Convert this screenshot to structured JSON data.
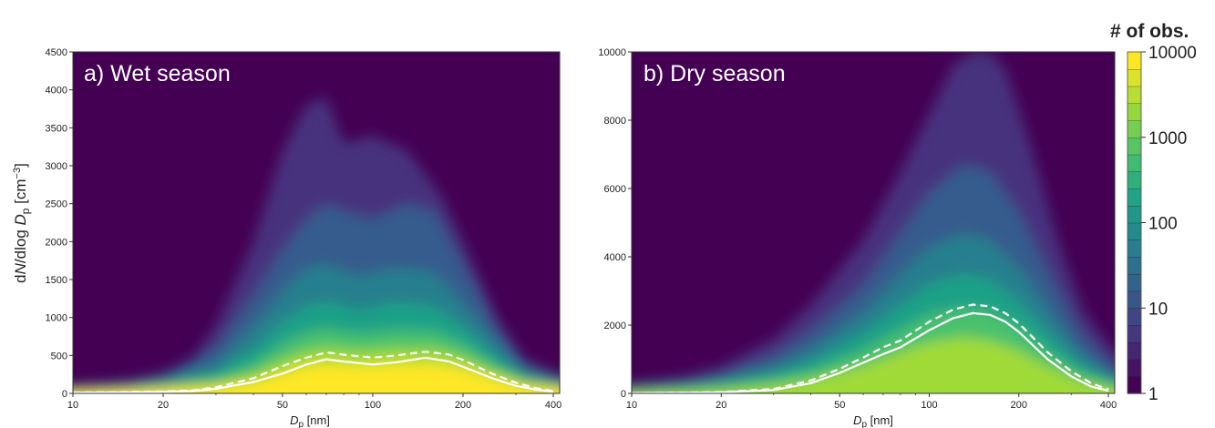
{
  "colorbar": {
    "title": "# of obs.",
    "ticks": [
      "10000",
      "1000",
      "100",
      "10",
      "1"
    ],
    "tick_values": [
      10000,
      1000,
      100,
      10,
      1
    ],
    "scale": "log",
    "colormap": "viridis",
    "colors": [
      "#440154",
      "#46337e",
      "#365c8d",
      "#277f8e",
      "#1fa187",
      "#4ac16d",
      "#a0da39",
      "#fde725"
    ]
  },
  "shared": {
    "xlabel": {
      "main": "D",
      "sub": "p",
      "unit": " [nm]"
    },
    "ylabel": {
      "p1": "d",
      "p2": "N",
      "p3": "/dlog ",
      "p4": "D",
      "p5": "p",
      "p6": " [cm",
      "p7": "−3",
      "p8": "]"
    }
  },
  "chart_data": [
    {
      "type": "heatmap",
      "title": "a) Wet season",
      "x_scale": "log",
      "xlim": [
        10,
        420
      ],
      "ylim": [
        0,
        4500
      ],
      "x_ticks": [
        10,
        20,
        50,
        100,
        200,
        400
      ],
      "x_tick_labels": [
        "10",
        "20",
        "50",
        "100",
        "200",
        "400"
      ],
      "y_ticks": [
        0,
        500,
        1000,
        1500,
        2000,
        2500,
        3000,
        3500,
        4000,
        4500
      ],
      "y_tick_labels": [
        "0",
        "500",
        "1000",
        "1500",
        "2000",
        "2500",
        "3000",
        "3500",
        "4000",
        "4500"
      ],
      "series": [
        {
          "style": "solid",
          "x": [
            10,
            15,
            20,
            25,
            30,
            40,
            50,
            60,
            70,
            80,
            100,
            120,
            150,
            180,
            200,
            250,
            300,
            350,
            400
          ],
          "y": [
            10,
            15,
            20,
            30,
            60,
            150,
            260,
            380,
            450,
            420,
            380,
            410,
            470,
            420,
            350,
            200,
            100,
            50,
            20
          ]
        },
        {
          "style": "dashed",
          "x": [
            10,
            15,
            20,
            25,
            30,
            40,
            50,
            60,
            70,
            80,
            100,
            120,
            150,
            180,
            200,
            250,
            300,
            350,
            400
          ],
          "y": [
            12,
            18,
            25,
            40,
            80,
            200,
            360,
            470,
            540,
            510,
            470,
            500,
            550,
            510,
            440,
            260,
            140,
            70,
            30
          ]
        }
      ]
    },
    {
      "type": "heatmap",
      "title": "b) Dry season",
      "x_scale": "log",
      "xlim": [
        10,
        420
      ],
      "ylim": [
        0,
        10000
      ],
      "x_ticks": [
        10,
        20,
        50,
        100,
        200,
        400
      ],
      "x_tick_labels": [
        "10",
        "20",
        "50",
        "100",
        "200",
        "400"
      ],
      "y_ticks": [
        0,
        2000,
        4000,
        6000,
        8000,
        10000
      ],
      "y_tick_labels": [
        "0",
        "2000",
        "4000",
        "6000",
        "8000",
        "10000"
      ],
      "series": [
        {
          "style": "solid",
          "x": [
            10,
            15,
            20,
            30,
            40,
            50,
            60,
            70,
            80,
            100,
            120,
            140,
            160,
            180,
            200,
            250,
            300,
            350,
            400
          ],
          "y": [
            10,
            20,
            30,
            100,
            300,
            600,
            900,
            1150,
            1350,
            1850,
            2200,
            2350,
            2300,
            2100,
            1800,
            1000,
            500,
            200,
            80
          ]
        },
        {
          "style": "dashed",
          "x": [
            10,
            15,
            20,
            30,
            40,
            50,
            60,
            70,
            80,
            100,
            120,
            140,
            160,
            180,
            200,
            250,
            300,
            350,
            400
          ],
          "y": [
            12,
            25,
            40,
            130,
            380,
            720,
            1050,
            1350,
            1550,
            2100,
            2450,
            2600,
            2550,
            2350,
            2050,
            1200,
            650,
            300,
            120
          ]
        }
      ]
    }
  ]
}
